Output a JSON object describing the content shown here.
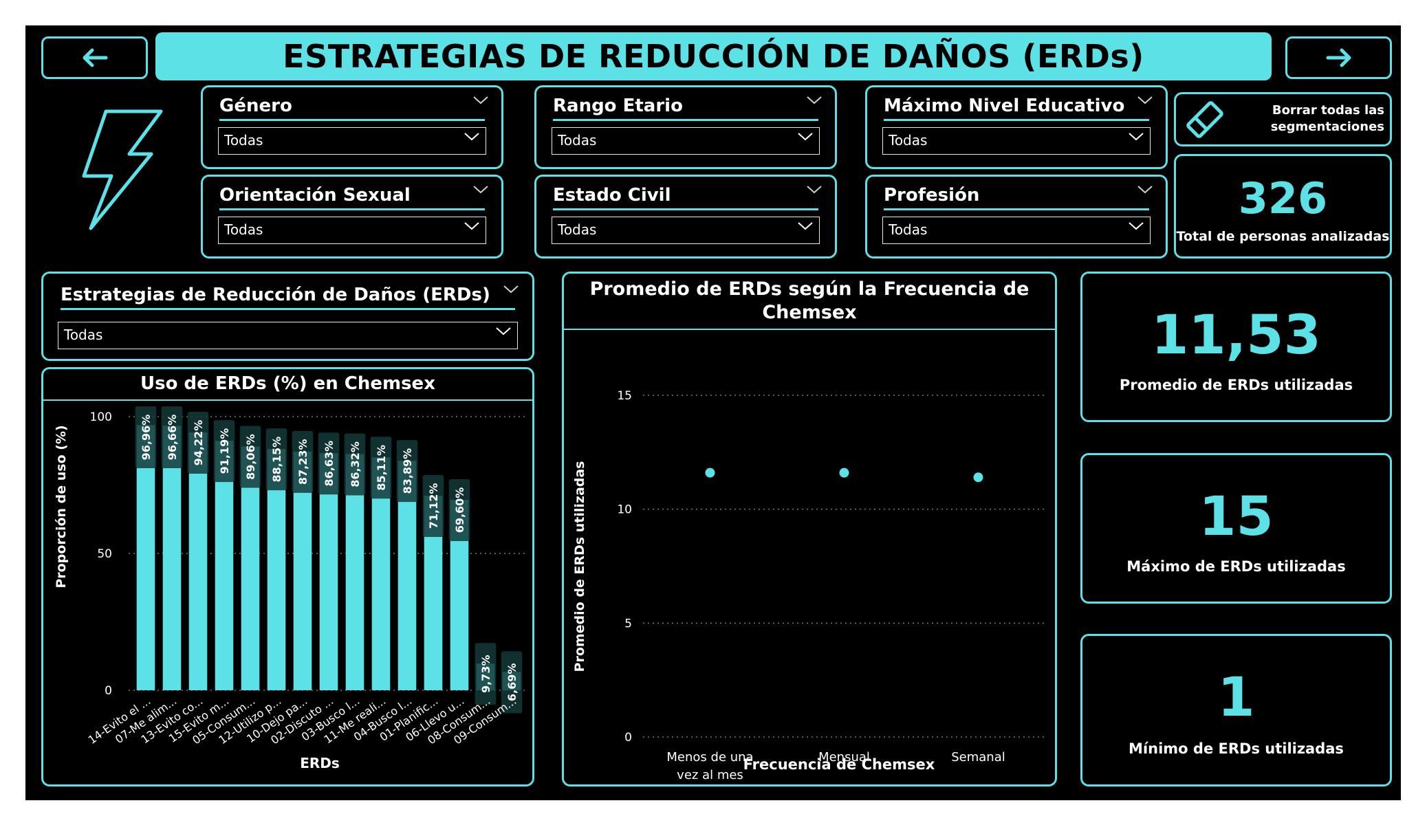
{
  "header": {
    "title": "ESTRATEGIAS DE REDUCCIÓN DE DAÑOS (ERDs)",
    "back_icon": "arrow-left-icon",
    "forward_icon": "arrow-right-icon",
    "accent_color": "#5ce1e6",
    "background_color": "#000000"
  },
  "logo": {
    "icon": "lightning-bolt-icon"
  },
  "filters": [
    {
      "label": "Género",
      "value": "Todas"
    },
    {
      "label": "Rango Etario",
      "value": "Todas"
    },
    {
      "label": "Máximo Nivel Educativo",
      "value": "Todas"
    },
    {
      "label": "Orientación Sexual",
      "value": "Todas"
    },
    {
      "label": "Estado Civil",
      "value": "Todas"
    },
    {
      "label": "Profesión",
      "value": "Todas"
    }
  ],
  "erd_filter": {
    "label": "Estrategias de Reducción de Daños (ERDs)",
    "value": "Todas"
  },
  "clear_button": {
    "label_line1": "Borrar todas las",
    "label_line2": "segmentaciones",
    "icon": "eraser-icon"
  },
  "kpis": {
    "total": {
      "value": "326",
      "label": "Total de personas analizadas"
    },
    "average": {
      "value": "11,53",
      "label": "Promedio de ERDs utilizadas"
    },
    "max": {
      "value": "15",
      "label": "Máximo de ERDs utilizadas"
    },
    "min": {
      "value": "1",
      "label": "Mínimo de ERDs utilizadas"
    }
  },
  "chart_data": [
    {
      "type": "bar",
      "title": "Uso de ERDs (%) en Chemsex",
      "xlabel": "ERDs",
      "ylabel": "Proporción de uso (%)",
      "ylim": [
        0,
        100
      ],
      "yticks": [
        "0",
        "50",
        "100"
      ],
      "grid": true,
      "categories": [
        "14-Evito el ...",
        "07-Me alim...",
        "13-Evito co...",
        "15-Evito m...",
        "05-Consum...",
        "12-Utilizo p...",
        "10-Dejo pa...",
        "02-Discuto ...",
        "03-Busco l...",
        "11-Me reali...",
        "04-Busco l...",
        "01-Planific...",
        "06-Llevo u...",
        "08-Consum...",
        "09-Consum..."
      ],
      "values": [
        96.96,
        96.66,
        94.22,
        91.19,
        89.06,
        88.15,
        87.23,
        86.63,
        86.32,
        85.11,
        83.89,
        71.12,
        69.6,
        9.73,
        6.69
      ],
      "data_labels": [
        "96,96%",
        "96,66%",
        "94,22%",
        "91,19%",
        "89,06%",
        "88,15%",
        "87,23%",
        "86,63%",
        "86,32%",
        "85,11%",
        "83,89%",
        "71,12%",
        "69,60%",
        "9,73%",
        "6,69%"
      ],
      "bar_color": "#5ce1e6"
    },
    {
      "type": "scatter",
      "title_line1": "Promedio de ERDs según la Frecuencia de",
      "title_line2": "Chemsex",
      "xlabel": "Frecuencia de Chemsex",
      "ylabel": "Promedio de ERDs utilizadas",
      "ylim": [
        0,
        15
      ],
      "yticks": [
        "0",
        "5",
        "10",
        "15"
      ],
      "grid": true,
      "categories": [
        [
          "Menos de una",
          "vez al mes"
        ],
        [
          "Mensual"
        ],
        [
          "Semanal"
        ]
      ],
      "values": [
        11.6,
        11.6,
        11.4
      ],
      "point_color": "#5ce1e6"
    }
  ]
}
